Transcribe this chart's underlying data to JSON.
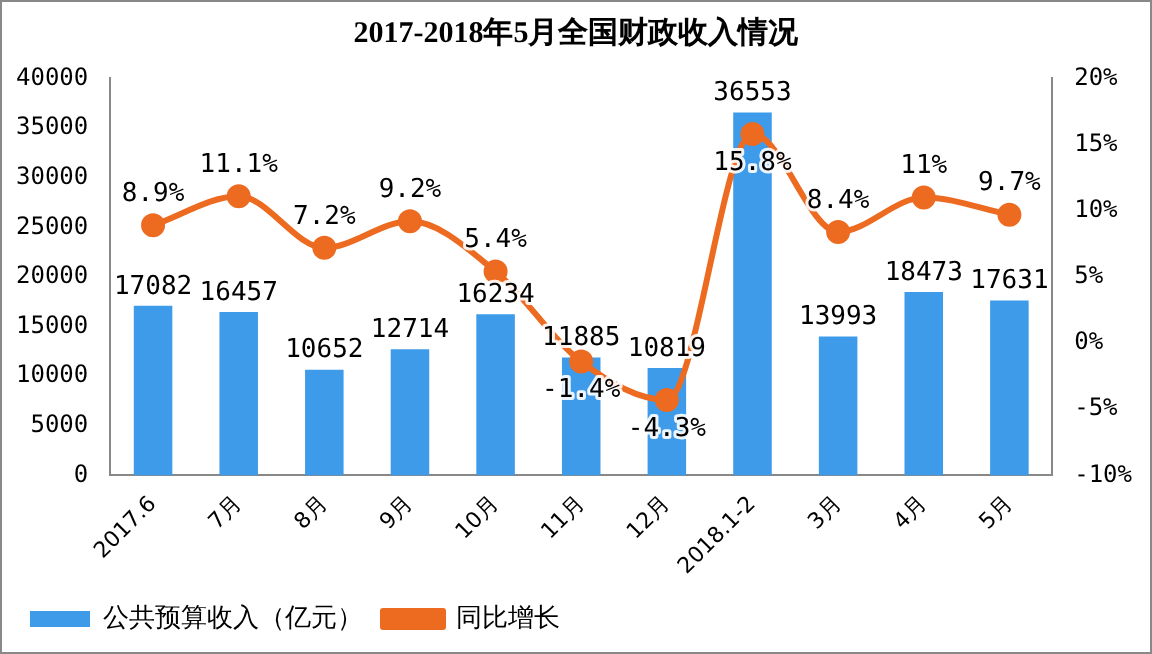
{
  "chart_data": {
    "type": "bar",
    "title": "2017-2018年5月全国财政收入情况",
    "categories": [
      "2017.6",
      "7月",
      "8月",
      "9月",
      "10月",
      "11月",
      "12月",
      "2018.1-2",
      "3月",
      "4月",
      "5月"
    ],
    "series": [
      {
        "name": "公共预算收入（亿元）",
        "color": "#3d9be9",
        "values": [
          17082,
          16457,
          10652,
          12714,
          16234,
          11885,
          10819,
          36553,
          13993,
          18473,
          17631
        ],
        "value_labels": [
          "17082",
          "16457",
          "10652",
          "12714",
          "16234",
          "11885",
          "10819",
          "36553",
          "13993",
          "18473",
          "17631"
        ]
      },
      {
        "name": "同比增长",
        "type": "line",
        "axis": "y2",
        "color": "#ed6b21",
        "marker": "circle",
        "values": [
          8.9,
          11.1,
          7.2,
          9.2,
          5.4,
          -1.4,
          -4.3,
          15.8,
          8.4,
          11,
          9.7
        ],
        "value_labels": [
          "8.9%",
          "11.1%",
          "7.2%",
          "9.2%",
          "5.4%",
          "-1.4%",
          "-4.3%",
          "15.8%",
          "8.4%",
          "11%",
          "9.7%"
        ]
      }
    ],
    "ylim": [
      0,
      40000
    ],
    "yticks": [
      0,
      5000,
      10000,
      15000,
      20000,
      25000,
      30000,
      35000,
      40000
    ],
    "y2lim": [
      -10,
      20
    ],
    "y2ticks": [
      {
        "value": -10,
        "label": "-10%"
      },
      {
        "value": -5,
        "label": "-5%"
      },
      {
        "value": 0,
        "label": "0%"
      },
      {
        "value": 5,
        "label": "5%"
      },
      {
        "value": 10,
        "label": "10%"
      },
      {
        "value": 15,
        "label": "15%"
      },
      {
        "value": 20,
        "label": "20%"
      }
    ],
    "grid": false,
    "legend": "bottom left"
  }
}
